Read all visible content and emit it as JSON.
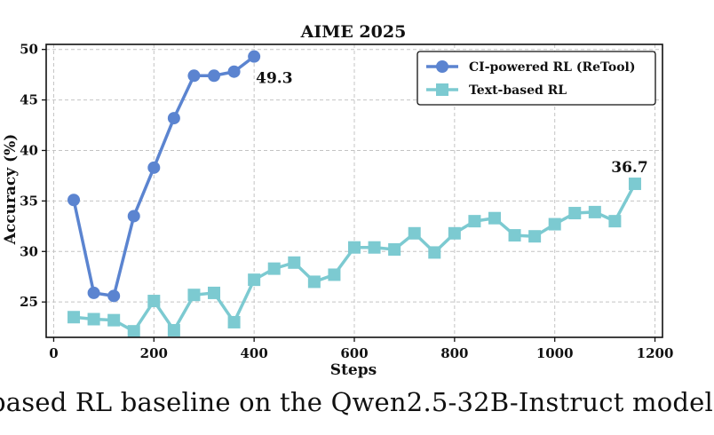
{
  "chart_data": {
    "type": "line",
    "title": "AIME 2025",
    "xlabel": "Steps",
    "ylabel": "Accuracy (%)",
    "xlim": [
      -15,
      1215
    ],
    "ylim": [
      21.5,
      50.5
    ],
    "xticks": [
      0,
      200,
      400,
      600,
      800,
      1000,
      1200
    ],
    "yticks": [
      25,
      30,
      35,
      40,
      45,
      50
    ],
    "grid": true,
    "legend_position": "top-right",
    "series": [
      {
        "name": "CI-powered RL (ReTool)",
        "color": "#5b84d0",
        "marker": "circle",
        "x": [
          40,
          80,
          120,
          160,
          200,
          240,
          280,
          320,
          360,
          400
        ],
        "y": [
          35.1,
          25.9,
          25.6,
          33.5,
          38.3,
          43.2,
          47.4,
          47.4,
          47.8,
          49.3
        ]
      },
      {
        "name": "Text-based RL",
        "color": "#7ccad1",
        "marker": "square",
        "x": [
          40,
          80,
          120,
          160,
          200,
          240,
          280,
          320,
          360,
          400,
          440,
          480,
          520,
          560,
          600,
          640,
          680,
          720,
          760,
          800,
          840,
          880,
          920,
          960,
          1000,
          1040,
          1080,
          1120,
          1160
        ],
        "y": [
          23.5,
          23.3,
          23.2,
          22.1,
          25.1,
          22.2,
          25.7,
          25.9,
          23.0,
          27.2,
          28.3,
          28.9,
          27.0,
          27.7,
          30.4,
          30.4,
          30.2,
          31.8,
          29.9,
          31.8,
          33.0,
          33.3,
          31.6,
          31.5,
          32.7,
          33.8,
          33.9,
          33.0,
          36.7
        ]
      }
    ],
    "annotations": [
      {
        "text": "49.3",
        "x": 400,
        "y": 49.3
      },
      {
        "text": "36.7",
        "x": 1160,
        "y": 36.7
      }
    ]
  },
  "caption": "based RL baseline on the Qwen2.5-32B-Instruct model."
}
